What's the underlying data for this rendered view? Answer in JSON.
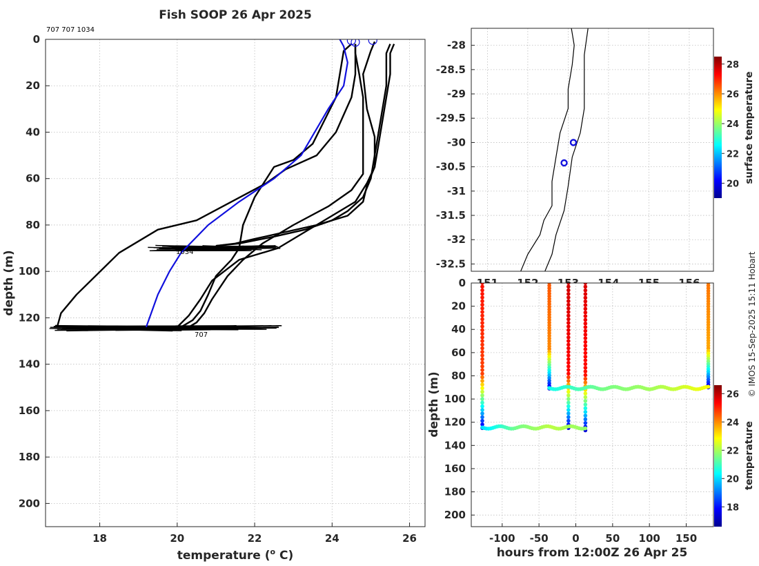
{
  "title": "Fish SOOP 26 Apr 2025",
  "id_label": "707 707 1034",
  "probe_labels": [
    "1034",
    "707"
  ],
  "credit": "© IMOS 15-Sep-2025 15:11 Hobart",
  "colors": {
    "xbt": "#000000",
    "climatology": "#1010dd",
    "axis": "#262626"
  },
  "chart_data": [
    {
      "name": "profile",
      "type": "line",
      "xlabel": "temperature (° C)",
      "xlabel_prefix": "temperature (",
      "xlabel_sup": "o",
      "xlabel_suffix": " C)",
      "ylabel": "depth (m)",
      "xlim": [
        16.6,
        26.4
      ],
      "ylim": [
        210,
        0
      ],
      "xticks": [
        18,
        20,
        22,
        24,
        26
      ],
      "yticks": [
        0,
        20,
        40,
        60,
        80,
        100,
        120,
        140,
        160,
        180,
        200
      ],
      "series": [
        {
          "name": "cast-1",
          "color": "#000000",
          "points": [
            [
              24.5,
              2
            ],
            [
              24.3,
              5
            ],
            [
              24.2,
              15
            ],
            [
              24.1,
              25
            ],
            [
              23.5,
              45
            ],
            [
              23.0,
              52
            ],
            [
              22.5,
              55
            ],
            [
              22.0,
              68
            ],
            [
              21.7,
              80
            ],
            [
              21.6,
              90
            ],
            [
              21.4,
              95
            ],
            [
              21.0,
              102
            ],
            [
              20.8,
              110
            ],
            [
              20.6,
              117
            ],
            [
              20.4,
              121
            ],
            [
              20.0,
              125
            ]
          ]
        },
        {
          "name": "cast-2",
          "color": "#000000",
          "points": [
            [
              24.6,
              2
            ],
            [
              24.6,
              6
            ],
            [
              24.7,
              15
            ],
            [
              24.8,
              25
            ],
            [
              24.8,
              45
            ],
            [
              24.8,
              58
            ],
            [
              24.5,
              65
            ],
            [
              23.9,
              72
            ],
            [
              23.0,
              80
            ],
            [
              22.2,
              88
            ],
            [
              21.7,
              95
            ],
            [
              21.3,
              102
            ],
            [
              20.9,
              112
            ],
            [
              20.7,
              118
            ],
            [
              20.5,
              122
            ],
            [
              20.2,
              125
            ]
          ]
        },
        {
          "name": "cast-3",
          "color": "#000000",
          "points": [
            [
              25.1,
              1
            ],
            [
              25.0,
              5
            ],
            [
              24.8,
              15
            ],
            [
              24.9,
              30
            ],
            [
              25.1,
              42
            ],
            [
              25.1,
              55
            ],
            [
              24.9,
              62
            ],
            [
              24.6,
              70
            ],
            [
              24.0,
              76
            ],
            [
              23.3,
              83
            ],
            [
              22.6,
              90
            ],
            [
              21.6,
              95
            ],
            [
              20.9,
              104
            ],
            [
              20.6,
              112
            ],
            [
              20.3,
              119
            ],
            [
              20.0,
              124
            ]
          ]
        },
        {
          "name": "cast-4",
          "color": "#000000",
          "points": [
            [
              25.5,
              2
            ],
            [
              25.4,
              6
            ],
            [
              25.4,
              20
            ],
            [
              25.3,
              30
            ],
            [
              25.2,
              40
            ],
            [
              25.1,
              50
            ],
            [
              25.0,
              60
            ],
            [
              24.8,
              68
            ],
            [
              24.4,
              74
            ],
            [
              24.0,
              78
            ],
            [
              23.3,
              82
            ],
            [
              22.5,
              85
            ],
            [
              21.6,
              88
            ],
            [
              21.0,
              89
            ]
          ]
        },
        {
          "name": "cast-5",
          "color": "#000000",
          "points": [
            [
              25.6,
              2
            ],
            [
              25.5,
              6
            ],
            [
              25.5,
              15
            ],
            [
              25.4,
              25
            ],
            [
              25.3,
              35
            ],
            [
              25.2,
              45
            ],
            [
              25.1,
              55
            ],
            [
              24.9,
              63
            ],
            [
              24.8,
              70
            ],
            [
              24.4,
              76
            ],
            [
              23.6,
              80
            ],
            [
              22.8,
              83
            ],
            [
              22.0,
              86
            ],
            [
              21.5,
              88
            ],
            [
              21.0,
              89
            ]
          ]
        },
        {
          "name": "cast-6",
          "color": "#000000",
          "points": [
            [
              24.6,
              2
            ],
            [
              24.6,
              5
            ],
            [
              24.6,
              15
            ],
            [
              24.5,
              25
            ],
            [
              24.1,
              40
            ],
            [
              23.6,
              50
            ],
            [
              22.8,
              56
            ],
            [
              22.3,
              62
            ],
            [
              21.4,
              70
            ],
            [
              20.5,
              78
            ],
            [
              19.5,
              82
            ],
            [
              18.5,
              92
            ],
            [
              17.4,
              110
            ],
            [
              17.0,
              118
            ],
            [
              16.9,
              124
            ]
          ]
        },
        {
          "name": "climatology",
          "color": "#1010dd",
          "points": [
            [
              24.2,
              0
            ],
            [
              24.3,
              3
            ],
            [
              24.4,
              10
            ],
            [
              24.3,
              20
            ],
            [
              23.9,
              30
            ],
            [
              23.2,
              50
            ],
            [
              22.5,
              60
            ],
            [
              21.6,
              70
            ],
            [
              20.8,
              80
            ],
            [
              20.1,
              92
            ],
            [
              19.8,
              100
            ],
            [
              19.5,
              110
            ],
            [
              19.2,
              124
            ]
          ]
        }
      ],
      "markers": [
        [
          24.5,
          0.5
        ],
        [
          24.6,
          1.2
        ],
        [
          25.05,
          0.4
        ]
      ],
      "noise_bands": [
        {
          "y": 90,
          "x": [
            19.2,
            22.7
          ]
        },
        {
          "y": 124.5,
          "x": [
            16.6,
            22.7
          ]
        }
      ]
    },
    {
      "name": "map",
      "type": "scatter",
      "colorbar_label": "surface temperature",
      "xlim": [
        150.6,
        156.6
      ],
      "ylim": [
        -32.65,
        -27.65
      ],
      "xticks": [
        151,
        152,
        153,
        154,
        155,
        156
      ],
      "yticks": [
        -28,
        -28.5,
        -29,
        -29.5,
        -30,
        -30.5,
        -31,
        -31.5,
        -32,
        -32.5
      ],
      "ytick_labels": [
        "-28",
        "-28.5",
        "-29",
        "-29.5",
        "-30",
        "-30.5",
        "-31",
        "-31.5",
        "-32",
        "-32.5"
      ],
      "coast": [
        [
          153.5,
          -27.6
        ],
        [
          153.4,
          -28.2
        ],
        [
          153.4,
          -28.7
        ],
        [
          153.4,
          -29.3
        ],
        [
          153.3,
          -29.8
        ],
        [
          153.1,
          -30.3
        ],
        [
          153.0,
          -30.9
        ],
        [
          152.9,
          -31.4
        ],
        [
          152.7,
          -31.9
        ],
        [
          152.6,
          -32.3
        ],
        [
          152.4,
          -32.7
        ]
      ],
      "coast_inner": [
        [
          153.07,
          -27.6
        ],
        [
          153.15,
          -28.0
        ],
        [
          153.1,
          -28.4
        ],
        [
          153.0,
          -28.9
        ],
        [
          153.0,
          -29.3
        ],
        [
          152.8,
          -29.8
        ],
        [
          152.7,
          -30.3
        ],
        [
          152.6,
          -30.8
        ],
        [
          152.6,
          -31.3
        ],
        [
          152.4,
          -31.6
        ],
        [
          152.3,
          -31.9
        ],
        [
          152.0,
          -32.3
        ],
        [
          151.8,
          -32.7
        ]
      ],
      "points": [
        [
          153.13,
          -30.0
        ],
        [
          152.9,
          -30.42
        ]
      ],
      "marker_color": "#1010dd",
      "colorbar": {
        "min": 19,
        "max": 28.5,
        "ticks": [
          20,
          22,
          24,
          26,
          28
        ]
      }
    },
    {
      "name": "section",
      "type": "scatter",
      "xlabel": "hours from 12:00Z 26 Apr 25",
      "ylabel": "depth (m)",
      "colorbar_label": "temperature",
      "xlim": [
        -142,
        187
      ],
      "ylim": [
        210,
        0
      ],
      "xticks": [
        -100,
        -50,
        0,
        50,
        100,
        150
      ],
      "yticks": [
        0,
        20,
        40,
        60,
        80,
        100,
        120,
        140,
        160,
        180,
        200
      ],
      "colorbar": {
        "min": 16.6,
        "max": 26.6,
        "ticks": [
          18,
          20,
          22,
          24,
          26
        ]
      },
      "drops": [
        {
          "hours": -127,
          "max_depth": 125,
          "surface_temp": 25.2
        },
        {
          "hours": -36,
          "max_depth": 91,
          "surface_temp": 24.5
        },
        {
          "hours": -10,
          "max_depth": 125,
          "surface_temp": 25.8
        },
        {
          "hours": 13,
          "max_depth": 127,
          "surface_temp": 25.7
        },
        {
          "hours": 180,
          "max_depth": 90,
          "surface_temp": 24.2
        }
      ],
      "tracks": [
        {
          "depth": 124.5,
          "from": -127,
          "to": 13,
          "temps": [
            20.0,
            21.5,
            22.2,
            21.8
          ]
        },
        {
          "depth": 90.5,
          "from": -36,
          "to": 180,
          "temps": [
            20.5,
            21.5,
            22.0,
            22.8
          ]
        }
      ]
    }
  ]
}
